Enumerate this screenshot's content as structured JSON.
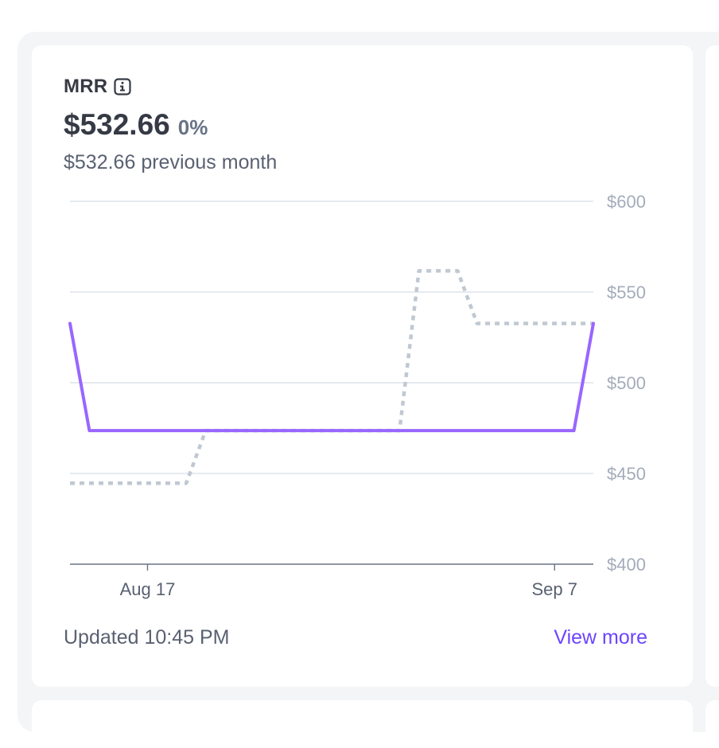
{
  "card": {
    "title": "MRR",
    "value": "$532.66",
    "change": "0%",
    "previous": "$532.66 previous month",
    "updated": "Updated 10:45 PM",
    "view_more": "View more",
    "info_icon": "info-icon"
  },
  "colors": {
    "current_line": "#9966ff",
    "previous_line": "#c0c8d2",
    "link": "#6a45ff",
    "grid": "#d8dde6"
  },
  "chart_data": {
    "type": "line",
    "title": "",
    "xlabel": "",
    "ylabel": "",
    "ylim": [
      400,
      600
    ],
    "y_ticks": [
      "$600",
      "$550",
      "$500",
      "$450",
      "$400"
    ],
    "y_tick_values": [
      600,
      550,
      500,
      450,
      400
    ],
    "y_axis_position": "right",
    "grid": true,
    "x_ticks": [
      {
        "label": "Aug 17",
        "day": 4
      },
      {
        "label": "Sep 7",
        "day": 25
      }
    ],
    "day_range": [
      0,
      27
    ],
    "series": [
      {
        "style": "solid",
        "color": "#9966ff",
        "points": [
          [
            0,
            532.66
          ],
          [
            1,
            473.66
          ],
          [
            26,
            473.66
          ],
          [
            27,
            532.66
          ]
        ]
      },
      {
        "style": "dotted",
        "color": "#c0c8d2",
        "points": [
          [
            0,
            444.66
          ],
          [
            6,
            444.66
          ],
          [
            7,
            473.66
          ],
          [
            17,
            473.66
          ],
          [
            18,
            561.66
          ],
          [
            20,
            561.66
          ],
          [
            21,
            532.66
          ],
          [
            27,
            532.66
          ]
        ]
      }
    ]
  }
}
